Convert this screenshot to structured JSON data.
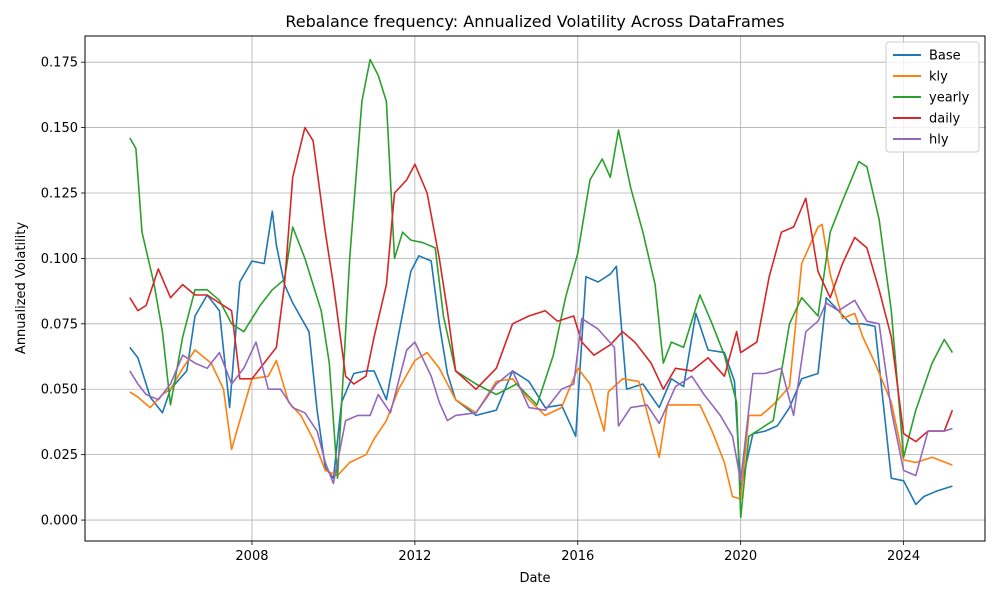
{
  "chart_data": {
    "type": "line",
    "title": "Rebalance frequency: Annualized Volatility Across DataFrames",
    "xlabel": "Date",
    "ylabel": "Annualized Volatility",
    "xlim": [
      2003.9,
      2026.0
    ],
    "ylim": [
      -0.008,
      0.185
    ],
    "x_ticks": [
      2008,
      2012,
      2016,
      2020,
      2024
    ],
    "y_ticks": [
      0.0,
      0.025,
      0.05,
      0.075,
      0.1,
      0.125,
      0.15,
      0.175
    ],
    "x_tick_labels": [
      "2008",
      "2012",
      "2016",
      "2020",
      "2024"
    ],
    "y_tick_labels": [
      "0.000",
      "0.025",
      "0.050",
      "0.075",
      "0.100",
      "0.125",
      "0.150",
      "0.175"
    ],
    "grid": true,
    "legend_position": "top-right",
    "series": [
      {
        "name": "Base",
        "color": "#1f77b4",
        "x": [
          2005.0,
          2005.2,
          2005.5,
          2005.8,
          2006.0,
          2006.4,
          2006.6,
          2006.9,
          2007.2,
          2007.45,
          2007.7,
          2008.0,
          2008.3,
          2008.5,
          2008.6,
          2008.8,
          2009.0,
          2009.4,
          2009.6,
          2009.8,
          2010.0,
          2010.2,
          2010.5,
          2010.8,
          2011.0,
          2011.3,
          2011.6,
          2011.9,
          2012.1,
          2012.4,
          2012.6,
          2012.8,
          2013.0,
          2013.5,
          2014.0,
          2014.4,
          2014.8,
          2015.2,
          2015.6,
          2015.95,
          2016.2,
          2016.5,
          2016.8,
          2016.95,
          2017.2,
          2017.6,
          2018.0,
          2018.3,
          2018.6,
          2018.9,
          2019.2,
          2019.6,
          2019.85,
          2020.0,
          2020.3,
          2020.6,
          2020.9,
          2021.2,
          2021.5,
          2021.9,
          2022.1,
          2022.4,
          2022.7,
          2023.0,
          2023.3,
          2023.7,
          2024.0,
          2024.3,
          2024.5,
          2024.8,
          2025.2
        ],
        "y": [
          0.066,
          0.062,
          0.047,
          0.041,
          0.05,
          0.057,
          0.078,
          0.086,
          0.08,
          0.043,
          0.091,
          0.099,
          0.098,
          0.118,
          0.105,
          0.09,
          0.083,
          0.072,
          0.042,
          0.02,
          0.016,
          0.045,
          0.056,
          0.057,
          0.057,
          0.046,
          0.071,
          0.095,
          0.101,
          0.099,
          0.075,
          0.056,
          0.046,
          0.04,
          0.042,
          0.057,
          0.053,
          0.043,
          0.044,
          0.032,
          0.093,
          0.091,
          0.094,
          0.097,
          0.05,
          0.052,
          0.043,
          0.054,
          0.051,
          0.079,
          0.065,
          0.064,
          0.053,
          0.012,
          0.033,
          0.034,
          0.036,
          0.043,
          0.054,
          0.056,
          0.085,
          0.08,
          0.075,
          0.075,
          0.074,
          0.016,
          0.015,
          0.006,
          0.009,
          0.011,
          0.013
        ]
      },
      {
        "name": "kly",
        "color": "#ff7f0e",
        "x": [
          2005.0,
          2005.2,
          2005.5,
          2005.8,
          2006.0,
          2006.3,
          2006.6,
          2007.0,
          2007.3,
          2007.5,
          2007.7,
          2008.0,
          2008.4,
          2008.6,
          2008.9,
          2009.2,
          2009.5,
          2009.8,
          2010.1,
          2010.4,
          2010.8,
          2011.0,
          2011.3,
          2011.6,
          2012.0,
          2012.3,
          2012.6,
          2013.0,
          2013.5,
          2014.0,
          2014.4,
          2014.8,
          2015.2,
          2015.6,
          2016.0,
          2016.3,
          2016.65,
          2016.75,
          2017.1,
          2017.5,
          2018.0,
          2018.2,
          2018.5,
          2019.0,
          2019.3,
          2019.6,
          2019.8,
          2020.0,
          2020.2,
          2020.5,
          2020.8,
          2021.2,
          2021.5,
          2021.9,
          2022.0,
          2022.2,
          2022.5,
          2022.8,
          2023.0,
          2023.3,
          2023.7,
          2024.0,
          2024.3,
          2024.7,
          2025.2
        ],
        "y": [
          0.049,
          0.047,
          0.043,
          0.048,
          0.05,
          0.058,
          0.065,
          0.06,
          0.05,
          0.027,
          0.038,
          0.054,
          0.055,
          0.061,
          0.045,
          0.04,
          0.031,
          0.019,
          0.017,
          0.022,
          0.025,
          0.031,
          0.038,
          0.05,
          0.061,
          0.064,
          0.058,
          0.046,
          0.041,
          0.053,
          0.054,
          0.046,
          0.04,
          0.043,
          0.058,
          0.052,
          0.034,
          0.049,
          0.054,
          0.053,
          0.024,
          0.044,
          0.044,
          0.044,
          0.034,
          0.022,
          0.009,
          0.008,
          0.04,
          0.04,
          0.044,
          0.051,
          0.098,
          0.112,
          0.113,
          0.094,
          0.077,
          0.079,
          0.07,
          0.06,
          0.045,
          0.023,
          0.022,
          0.024,
          0.021
        ]
      },
      {
        "name": "yearly",
        "color": "#2ca02c",
        "x": [
          2005.0,
          2005.15,
          2005.3,
          2005.6,
          2005.8,
          2006.0,
          2006.3,
          2006.6,
          2006.9,
          2007.2,
          2007.5,
          2007.8,
          2008.2,
          2008.5,
          2008.8,
          2009.0,
          2009.3,
          2009.7,
          2009.9,
          2010.1,
          2010.4,
          2010.7,
          2010.9,
          2011.1,
          2011.3,
          2011.5,
          2011.7,
          2011.9,
          2012.2,
          2012.5,
          2012.7,
          2013.0,
          2013.5,
          2014.0,
          2014.5,
          2015.0,
          2015.4,
          2015.7,
          2016.0,
          2016.3,
          2016.6,
          2016.8,
          2017.0,
          2017.3,
          2017.6,
          2017.9,
          2018.1,
          2018.3,
          2018.6,
          2019.0,
          2019.3,
          2019.6,
          2019.9,
          2020.0,
          2020.2,
          2020.5,
          2020.8,
          2021.2,
          2021.5,
          2021.9,
          2022.2,
          2022.5,
          2022.9,
          2023.1,
          2023.4,
          2023.7,
          2024.0,
          2024.3,
          2024.7,
          2025.0,
          2025.2
        ],
        "y": [
          0.146,
          0.142,
          0.11,
          0.09,
          0.072,
          0.044,
          0.07,
          0.088,
          0.088,
          0.084,
          0.075,
          0.072,
          0.082,
          0.088,
          0.092,
          0.112,
          0.1,
          0.08,
          0.06,
          0.016,
          0.1,
          0.16,
          0.176,
          0.17,
          0.16,
          0.1,
          0.11,
          0.107,
          0.106,
          0.104,
          0.078,
          0.057,
          0.052,
          0.048,
          0.052,
          0.044,
          0.063,
          0.085,
          0.102,
          0.13,
          0.138,
          0.131,
          0.149,
          0.127,
          0.11,
          0.09,
          0.06,
          0.068,
          0.066,
          0.086,
          0.075,
          0.063,
          0.045,
          0.001,
          0.032,
          0.035,
          0.038,
          0.075,
          0.085,
          0.078,
          0.11,
          0.122,
          0.137,
          0.135,
          0.115,
          0.08,
          0.024,
          0.042,
          0.06,
          0.069,
          0.064
        ]
      },
      {
        "name": "daily",
        "color": "#d62728",
        "x": [
          2005.0,
          2005.2,
          2005.4,
          2005.7,
          2006.0,
          2006.3,
          2006.6,
          2006.9,
          2007.2,
          2007.5,
          2007.7,
          2008.0,
          2008.4,
          2008.6,
          2008.8,
          2009.0,
          2009.3,
          2009.5,
          2009.8,
          2010.0,
          2010.3,
          2010.5,
          2010.8,
          2011.0,
          2011.3,
          2011.5,
          2011.8,
          2012.0,
          2012.3,
          2012.6,
          2012.8,
          2013.0,
          2013.5,
          2014.0,
          2014.4,
          2014.8,
          2015.2,
          2015.5,
          2015.9,
          2016.1,
          2016.4,
          2016.8,
          2017.1,
          2017.4,
          2017.8,
          2018.1,
          2018.4,
          2018.8,
          2019.2,
          2019.6,
          2019.9,
          2020.0,
          2020.4,
          2020.7,
          2021.0,
          2021.3,
          2021.6,
          2021.9,
          2022.2,
          2022.5,
          2022.8,
          2023.1,
          2023.4,
          2023.7,
          2024.0,
          2024.3,
          2024.6,
          2025.0,
          2025.2
        ],
        "y": [
          0.085,
          0.08,
          0.082,
          0.096,
          0.085,
          0.09,
          0.086,
          0.086,
          0.083,
          0.08,
          0.054,
          0.054,
          0.062,
          0.066,
          0.09,
          0.131,
          0.15,
          0.145,
          0.11,
          0.09,
          0.055,
          0.052,
          0.055,
          0.07,
          0.09,
          0.125,
          0.13,
          0.136,
          0.125,
          0.1,
          0.08,
          0.057,
          0.05,
          0.058,
          0.075,
          0.078,
          0.08,
          0.076,
          0.078,
          0.068,
          0.063,
          0.067,
          0.072,
          0.068,
          0.06,
          0.05,
          0.058,
          0.057,
          0.062,
          0.055,
          0.072,
          0.064,
          0.068,
          0.093,
          0.11,
          0.112,
          0.123,
          0.095,
          0.085,
          0.098,
          0.108,
          0.104,
          0.088,
          0.07,
          0.033,
          0.03,
          0.034,
          0.034,
          0.042
        ]
      },
      {
        "name": "hly",
        "color": "#9467bd",
        "x": [
          2005.0,
          2005.2,
          2005.4,
          2005.7,
          2006.0,
          2006.3,
          2006.6,
          2006.9,
          2007.2,
          2007.5,
          2007.8,
          2008.1,
          2008.4,
          2008.7,
          2009.0,
          2009.3,
          2009.6,
          2009.8,
          2010.0,
          2010.3,
          2010.6,
          2010.9,
          2011.1,
          2011.4,
          2011.8,
          2012.0,
          2012.4,
          2012.6,
          2012.8,
          2013.0,
          2013.5,
          2014.0,
          2014.4,
          2014.8,
          2015.2,
          2015.6,
          2015.9,
          2016.1,
          2016.5,
          2016.9,
          2017.0,
          2017.3,
          2017.7,
          2018.0,
          2018.4,
          2018.8,
          2019.1,
          2019.5,
          2019.8,
          2020.0,
          2020.3,
          2020.6,
          2021.0,
          2021.3,
          2021.6,
          2021.9,
          2022.1,
          2022.4,
          2022.8,
          2023.1,
          2023.4,
          2023.7,
          2024.0,
          2024.3,
          2024.6,
          2025.0,
          2025.2
        ],
        "y": [
          0.057,
          0.052,
          0.048,
          0.046,
          0.052,
          0.063,
          0.06,
          0.058,
          0.064,
          0.052,
          0.058,
          0.068,
          0.05,
          0.05,
          0.043,
          0.041,
          0.034,
          0.022,
          0.014,
          0.038,
          0.04,
          0.04,
          0.048,
          0.041,
          0.065,
          0.068,
          0.055,
          0.045,
          0.038,
          0.04,
          0.041,
          0.052,
          0.057,
          0.043,
          0.042,
          0.05,
          0.052,
          0.077,
          0.073,
          0.066,
          0.036,
          0.043,
          0.044,
          0.037,
          0.051,
          0.055,
          0.048,
          0.04,
          0.032,
          0.015,
          0.056,
          0.056,
          0.058,
          0.04,
          0.072,
          0.076,
          0.083,
          0.08,
          0.084,
          0.076,
          0.075,
          0.042,
          0.019,
          0.017,
          0.034,
          0.034,
          0.035
        ]
      }
    ]
  }
}
